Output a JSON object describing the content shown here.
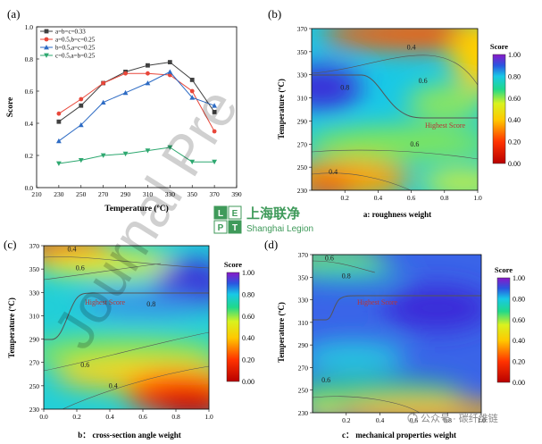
{
  "chart_data": [
    {
      "panel_label": "(a)",
      "type": "line",
      "xlabel": "Temperature (ºC)",
      "ylabel": "Score",
      "xlim": [
        210,
        390
      ],
      "ylim": [
        0.0,
        1.0
      ],
      "xticks": [
        210,
        230,
        250,
        270,
        290,
        310,
        330,
        350,
        370,
        390
      ],
      "yticks": [
        0.0,
        0.2,
        0.4,
        0.6,
        0.8,
        1.0
      ],
      "x": [
        230,
        250,
        270,
        290,
        310,
        330,
        350,
        370
      ],
      "legend_position": "top-left",
      "series": [
        {
          "name": "a=b=c=0.33",
          "color": "#404040",
          "marker": "square",
          "values": [
            0.41,
            0.51,
            0.65,
            0.72,
            0.76,
            0.78,
            0.67,
            0.47
          ]
        },
        {
          "name": "a=0.5,b=c=0.25",
          "color": "#e8473a",
          "marker": "circle",
          "values": [
            0.46,
            0.55,
            0.65,
            0.71,
            0.71,
            0.7,
            0.6,
            0.35
          ]
        },
        {
          "name": "b=0.5,a=c=0.25",
          "color": "#2d6bc4",
          "marker": "triangle-up",
          "values": [
            0.29,
            0.39,
            0.53,
            0.59,
            0.65,
            0.72,
            0.56,
            0.51
          ]
        },
        {
          "name": "c=0.5,a=b=0.25",
          "color": "#2ea870",
          "marker": "triangle-down",
          "values": [
            0.15,
            0.17,
            0.2,
            0.21,
            0.23,
            0.25,
            0.16,
            0.16
          ]
        }
      ]
    },
    {
      "panel_label": "(b)",
      "type": "heatmap",
      "xlabel": "a: roughness weight",
      "ylabel": "Temperature (ºC)",
      "xlim": [
        0.0,
        1.0
      ],
      "ylim": [
        230,
        370
      ],
      "xticks": [
        0.2,
        0.4,
        0.6,
        0.8,
        1.0
      ],
      "yticks": [
        230,
        250,
        270,
        290,
        310,
        330,
        350,
        370
      ],
      "colorbar_title": "Score",
      "colorbar_range": [
        0.0,
        1.0
      ],
      "colorbar_ticks": [
        "1.00",
        "0.80",
        "0.60",
        "0.40",
        "0.20",
        "0.00"
      ],
      "contour_labels": [
        {
          "text": "0.4",
          "x": 0.6,
          "y": 352
        },
        {
          "text": "0.8",
          "x": 0.2,
          "y": 317
        },
        {
          "text": "0.6",
          "x": 0.67,
          "y": 323
        },
        {
          "text": "0.6",
          "x": 0.62,
          "y": 268
        },
        {
          "text": "0.4",
          "x": 0.13,
          "y": 244
        }
      ],
      "annotation": "Highest Score"
    },
    {
      "panel_label": "(c)",
      "type": "heatmap",
      "xlabel": "b： cross-section angle weight",
      "ylabel": "Temperature (ºC)",
      "xlim": [
        0.0,
        1.0
      ],
      "ylim": [
        230,
        370
      ],
      "xticks": [
        0.0,
        0.2,
        0.4,
        0.6,
        0.8,
        1.0
      ],
      "yticks": [
        230,
        250,
        270,
        290,
        310,
        330,
        350,
        370
      ],
      "colorbar_title": "Score",
      "colorbar_range": [
        0.0,
        1.0
      ],
      "colorbar_ticks": [
        "1.00",
        "0.80",
        "0.60",
        "0.40",
        "0.20",
        "0.00"
      ],
      "contour_labels": [
        {
          "text": "0.4",
          "x": 0.17,
          "y": 365
        },
        {
          "text": "0.6",
          "x": 0.22,
          "y": 349
        },
        {
          "text": "0.8",
          "x": 0.65,
          "y": 318
        },
        {
          "text": "0.6",
          "x": 0.25,
          "y": 266
        },
        {
          "text": "0.4",
          "x": 0.42,
          "y": 248
        }
      ],
      "annotation": "Highest Score"
    },
    {
      "panel_label": "(d)",
      "type": "heatmap",
      "xlabel": "c： mechanical properties weight",
      "ylabel": "Temperature (ºC)",
      "xlim": [
        0.0,
        1.0
      ],
      "ylim": [
        230,
        370
      ],
      "xticks": [
        0.2,
        0.4,
        0.6,
        0.8,
        1.0
      ],
      "yticks": [
        230,
        250,
        270,
        290,
        310,
        330,
        350,
        370
      ],
      "colorbar_title": "Score",
      "colorbar_range": [
        0.0,
        1.0
      ],
      "colorbar_ticks": [
        "1.00",
        "0.80",
        "0.60",
        "0.40",
        "0.20",
        "0.00"
      ],
      "contour_labels": [
        {
          "text": "0.6",
          "x": 0.1,
          "y": 365
        },
        {
          "text": "0.8",
          "x": 0.2,
          "y": 349
        },
        {
          "text": "0.6",
          "x": 0.08,
          "y": 257
        }
      ],
      "annotation": "Highest Score"
    }
  ],
  "watermarks": {
    "journal": "Journal Pre",
    "logo_letters": [
      "L",
      "E",
      "P",
      "T"
    ],
    "logo_cn": "上海联净",
    "logo_en": "Shanghai Legion",
    "wechat": "公众号 · 碳纤维链",
    "colors": {
      "logo": "#3f9a5a"
    }
  }
}
